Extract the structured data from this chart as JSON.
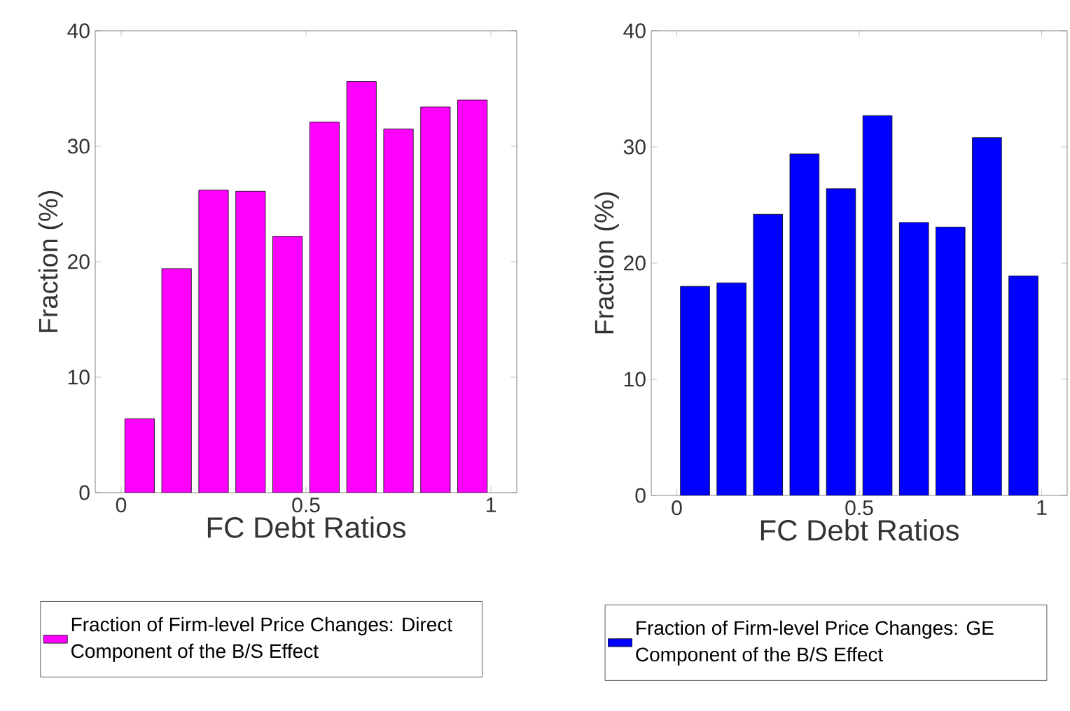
{
  "chart_data": [
    {
      "type": "bar",
      "xlabel": "FC Debt Ratios",
      "ylabel": "Fraction (%)",
      "x": [
        0.05,
        0.15,
        0.25,
        0.35,
        0.45,
        0.55,
        0.65,
        0.75,
        0.85,
        0.95
      ],
      "series": [
        {
          "name": "Fraction of Firm-level Price Changes: Direct Component of the B/S Effect",
          "color": "#ff00ff",
          "values": [
            6.4,
            19.4,
            26.2,
            26.1,
            22.2,
            32.1,
            35.6,
            31.5,
            33.4,
            34.0
          ]
        }
      ],
      "xlim": [
        -0.07,
        1.07
      ],
      "xticks": [
        0,
        0.5,
        1
      ],
      "ylim": [
        0,
        40
      ],
      "yticks": [
        0,
        10,
        20,
        30,
        40
      ],
      "legend": "bottom"
    },
    {
      "type": "bar",
      "xlabel": "FC Debt Ratios",
      "ylabel": "Fraction (%)",
      "x": [
        0.05,
        0.15,
        0.25,
        0.35,
        0.45,
        0.55,
        0.65,
        0.75,
        0.85,
        0.95
      ],
      "series": [
        {
          "name": "Fraction of Firm-level Price Changes: GE Component of the B/S Effect",
          "color": "#0000ff",
          "values": [
            18.0,
            18.3,
            24.2,
            29.4,
            26.4,
            32.7,
            23.5,
            23.1,
            30.8,
            18.9
          ]
        }
      ],
      "xlim": [
        -0.07,
        1.07
      ],
      "xticks": [
        0,
        0.5,
        1
      ],
      "ylim": [
        0,
        40
      ],
      "yticks": [
        0,
        10,
        20,
        30,
        40
      ],
      "legend": "bottom"
    }
  ]
}
